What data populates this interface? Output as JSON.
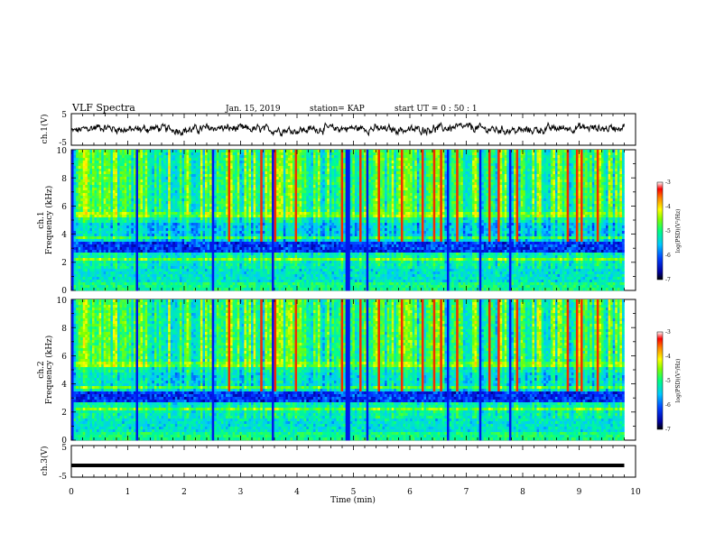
{
  "header": {
    "title": "VLF Spectra",
    "date": "Jan. 15, 2019",
    "station": "station= KAP",
    "start_ut": "start  UT =   0 : 50 : 1"
  },
  "chart_data": [
    {
      "id": "ch1-waveform",
      "type": "line",
      "ylabel": "ch.1(V)",
      "ylim": [
        -5,
        5
      ],
      "yticks": [
        "5",
        "-5"
      ],
      "xlim": [
        0,
        10
      ],
      "note_values": "low-frequency envelope sampled every 0.1 min over 0–9.8 min",
      "x": [
        0,
        0.5,
        1,
        1.5,
        2,
        2.5,
        3,
        3.5,
        4,
        4.5,
        5,
        5.5,
        6,
        6.5,
        7,
        7.5,
        8,
        8.5,
        9,
        9.5,
        9.8
      ],
      "y": [
        -0.6,
        0.8,
        -0.2,
        0.4,
        -0.3,
        0.5,
        0.2,
        -0.1,
        -0.3,
        0.3,
        0.4,
        0.1,
        -0.2,
        0.3,
        0.7,
        -0.1,
        -0.4,
        0.2,
        0.6,
        0.3,
        1.0
      ]
    },
    {
      "id": "ch1-spectrogram",
      "type": "heatmap",
      "ylabel": "ch.1\nFrequency (kHz)",
      "ylabel_line1": "ch.1",
      "ylabel_line2": "Frequency (kHz)",
      "ylim": [
        0,
        10
      ],
      "yticks": [
        "0",
        "2",
        "4",
        "6",
        "8",
        "10"
      ],
      "xlim": [
        0,
        10
      ],
      "colorbar": {
        "label": "log(PSD)(V²/Hz)",
        "range": [
          -7,
          -3
        ],
        "ticks": [
          "-3",
          "-4",
          "-5",
          "-6",
          "-7"
        ]
      }
    },
    {
      "id": "ch2-spectrogram",
      "type": "heatmap",
      "ylabel_line1": "ch.2",
      "ylabel_line2": "Frequency (kHz)",
      "ylim": [
        0,
        10
      ],
      "yticks": [
        "0",
        "2",
        "4",
        "6",
        "8",
        "10"
      ],
      "xlim": [
        0,
        10
      ],
      "colorbar": {
        "label": "log(PSD)(V²/Hz)",
        "range": [
          -7,
          -3
        ],
        "ticks": [
          "-3",
          "-4",
          "-5",
          "-6",
          "-7"
        ]
      }
    },
    {
      "id": "ch3-waveform",
      "type": "line",
      "ylabel": "ch.3(V)",
      "ylim": [
        -5,
        5
      ],
      "yticks": [
        "5",
        "-5"
      ],
      "xlim": [
        0,
        10
      ],
      "x": [
        0,
        9.8
      ],
      "y": [
        -1.3,
        -1.3
      ]
    }
  ],
  "xaxis": {
    "label": "Time (min)",
    "ticks": [
      "0",
      "1",
      "2",
      "3",
      "4",
      "5",
      "6",
      "7",
      "8",
      "9",
      "10"
    ]
  },
  "colors": {
    "colormap": [
      "#00007f",
      "#0000ff",
      "#00c0ff",
      "#00ff80",
      "#a0ff00",
      "#ffff00",
      "#ff8000",
      "#ff0000",
      "#ffffff"
    ],
    "trace": "#000000"
  }
}
